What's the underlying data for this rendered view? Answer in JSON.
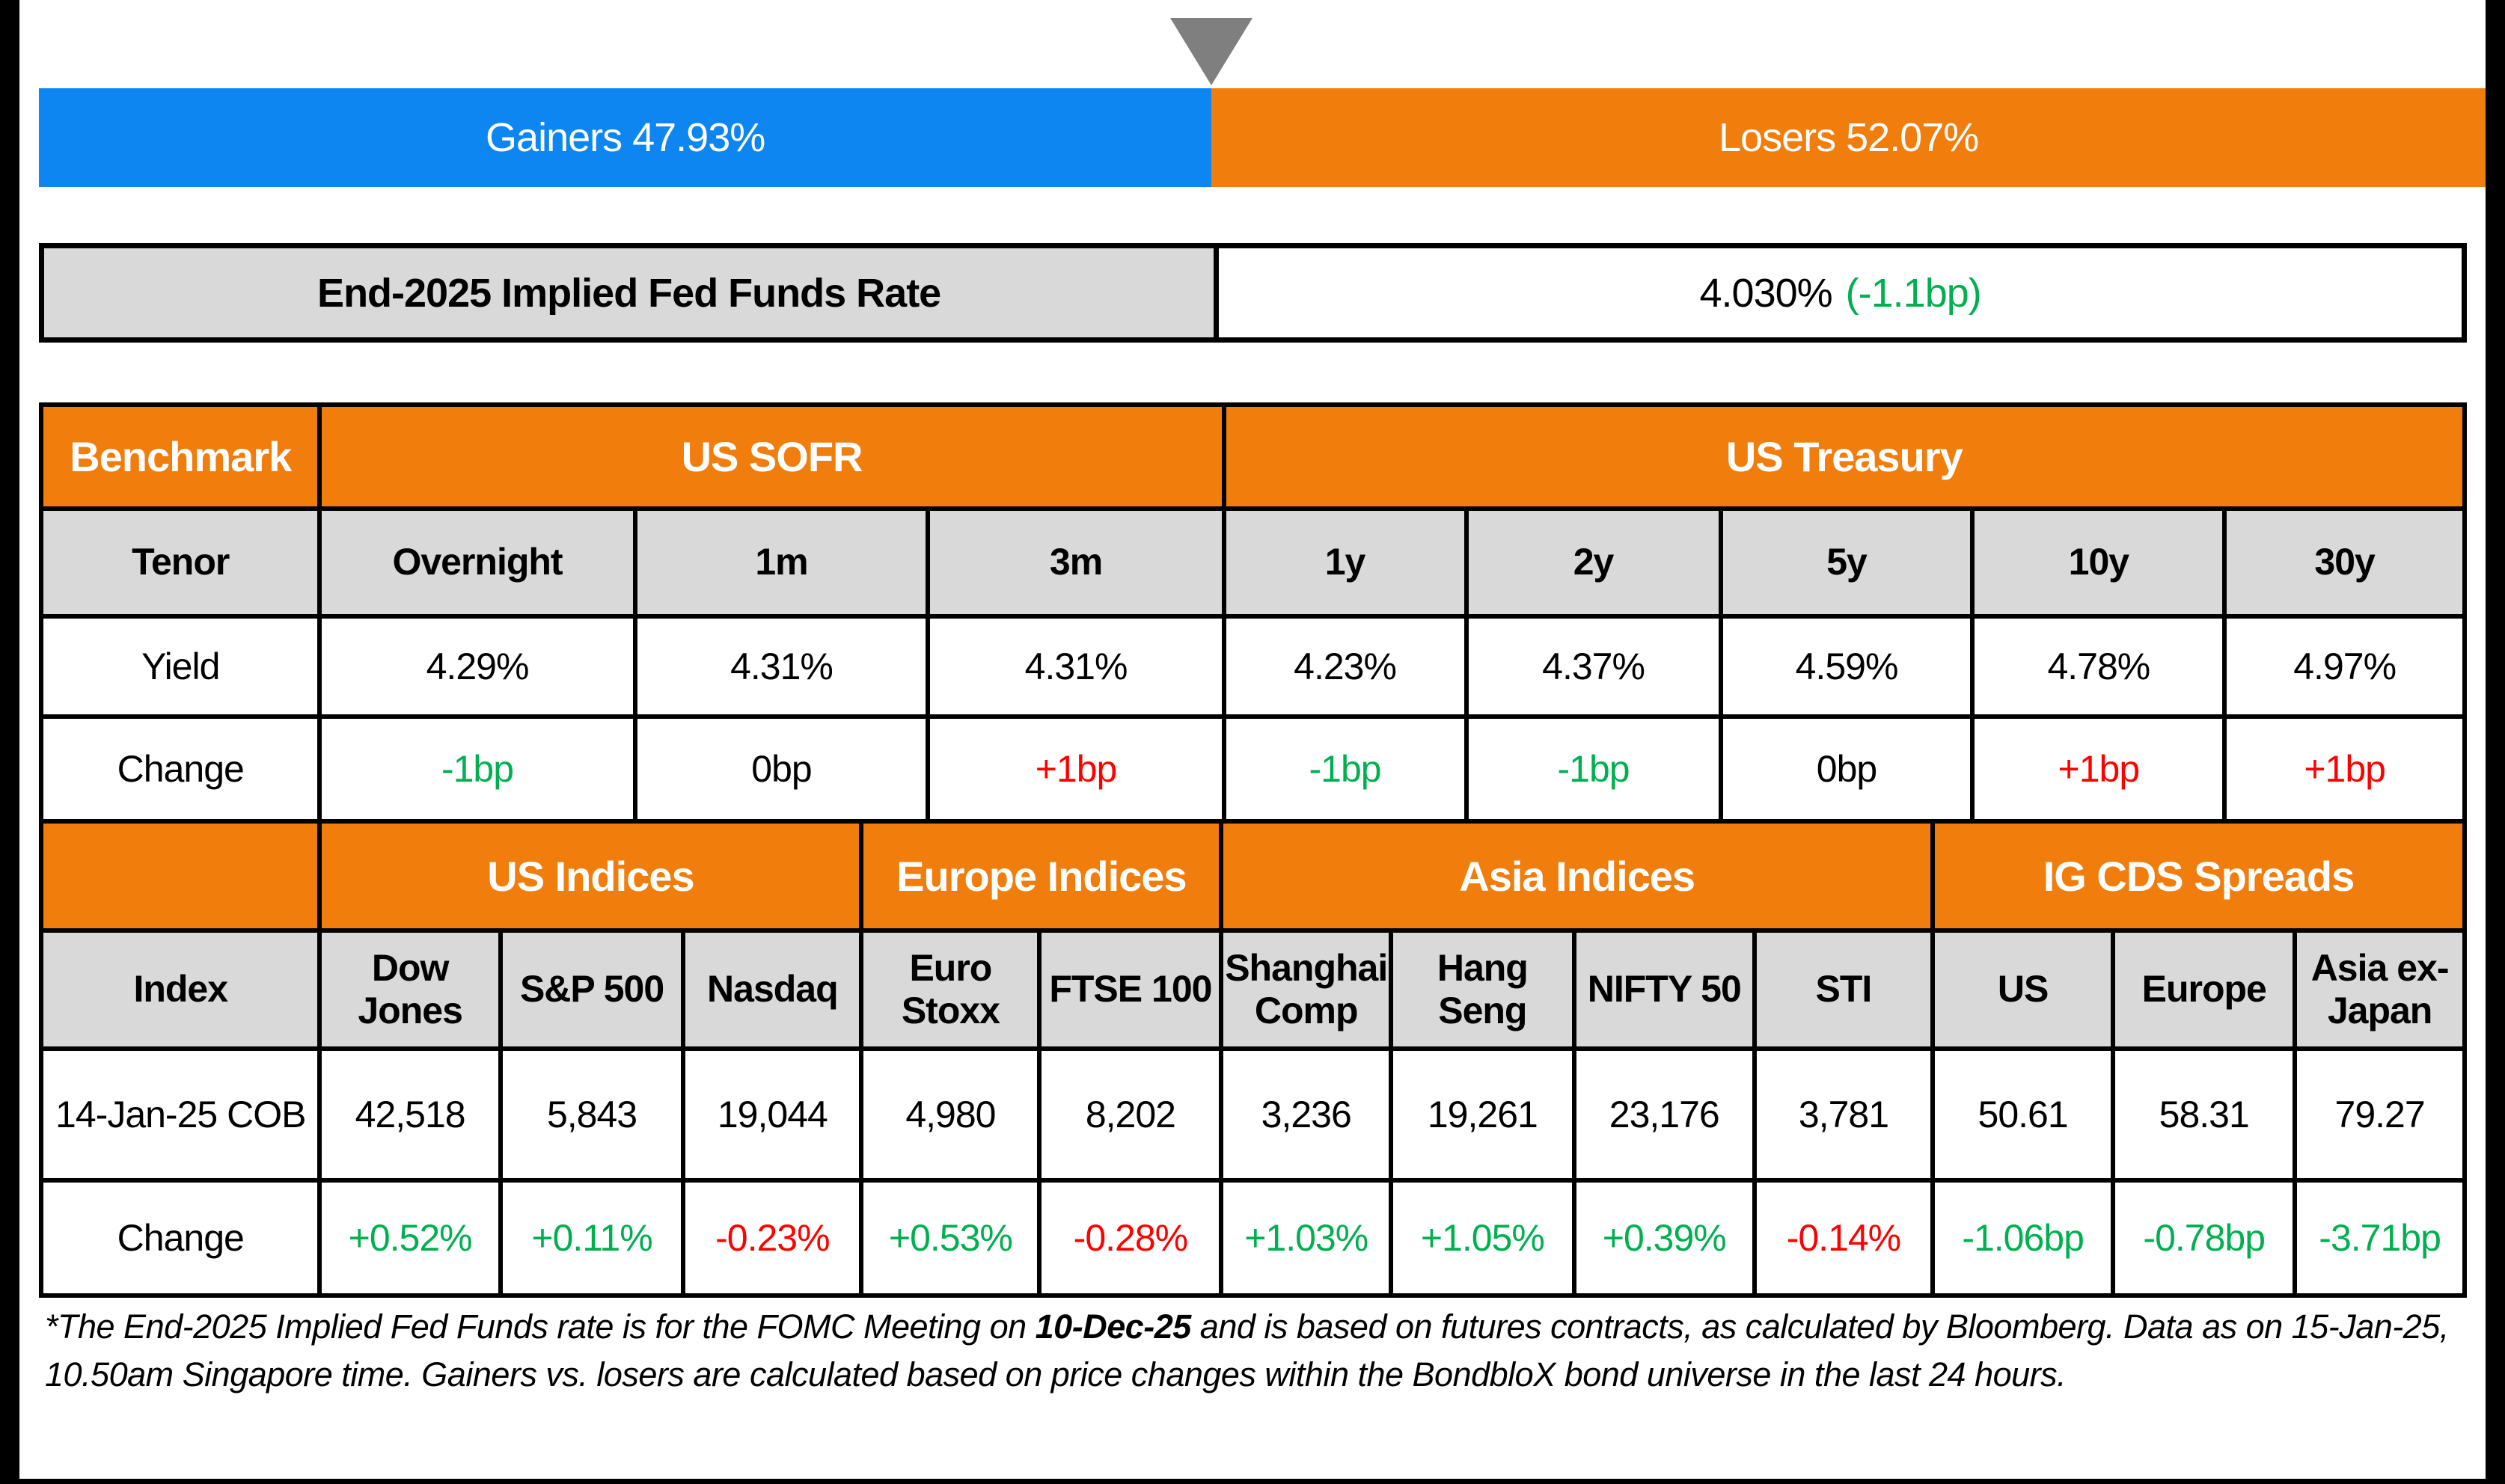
{
  "theme": {
    "orange": "#F07D0C",
    "blue": "#0E86F2",
    "gray_cell": "#D9D9D9",
    "pointer_gray": "#7F7F7F",
    "green": "#00B050",
    "red": "#FF0000",
    "black": "#000000"
  },
  "top_bar": {
    "gainers_label": "Gainers 47.93%",
    "losers_label": "Losers 52.07%",
    "gainers_pct": 47.93,
    "losers_pct": 52.07
  },
  "fed_funds": {
    "label": "End-2025 Implied Fed Funds Rate",
    "value": "4.030%",
    "change": "(-1.1bp)",
    "change_color": "#00B050"
  },
  "benchmark": {
    "corner_label": "Benchmark",
    "row_labels": {
      "tenor": "Tenor",
      "yield": "Yield",
      "change": "Change"
    },
    "groups": [
      {
        "label": "US SOFR",
        "span": 3
      },
      {
        "label": "US Treasury",
        "span": 5
      }
    ],
    "cols": [
      {
        "tenor": "Overnight",
        "yield": "4.29%",
        "change": "-1bp",
        "change_color": "#00B050"
      },
      {
        "tenor": "1m",
        "yield": "4.31%",
        "change": "0bp",
        "change_color": "#000000"
      },
      {
        "tenor": "3m",
        "yield": "4.31%",
        "change": "+1bp",
        "change_color": "#FF0000"
      },
      {
        "tenor": "1y",
        "yield": "4.23%",
        "change": "-1bp",
        "change_color": "#00B050"
      },
      {
        "tenor": "2y",
        "yield": "4.37%",
        "change": "-1bp",
        "change_color": "#00B050"
      },
      {
        "tenor": "5y",
        "yield": "4.59%",
        "change": "0bp",
        "change_color": "#000000"
      },
      {
        "tenor": "10y",
        "yield": "4.78%",
        "change": "+1bp",
        "change_color": "#FF0000"
      },
      {
        "tenor": "30y",
        "yield": "4.97%",
        "change": "+1bp",
        "change_color": "#FF0000"
      }
    ]
  },
  "indices": {
    "row_labels": {
      "index": "Index",
      "cob": "14-Jan-25 COB",
      "change": "Change"
    },
    "groups": [
      {
        "label": "US Indices",
        "span": 3
      },
      {
        "label": "Europe Indices",
        "span": 2
      },
      {
        "label": "Asia Indices",
        "span": 4
      },
      {
        "label": "IG CDS Spreads",
        "span": 3
      }
    ],
    "cols": [
      {
        "name": "Dow Jones",
        "value": "42,518",
        "change": "+0.52%",
        "change_color": "#00B050"
      },
      {
        "name": "S&P 500",
        "value": "5,843",
        "change": "+0.11%",
        "change_color": "#00B050"
      },
      {
        "name": "Nasdaq",
        "value": "19,044",
        "change": "-0.23%",
        "change_color": "#FF0000"
      },
      {
        "name": "Euro Stoxx",
        "value": "4,980",
        "change": "+0.53%",
        "change_color": "#00B050"
      },
      {
        "name": "FTSE 100",
        "value": "8,202",
        "change": "-0.28%",
        "change_color": "#FF0000"
      },
      {
        "name": "Shanghai Comp",
        "value": "3,236",
        "change": "+1.03%",
        "change_color": "#00B050"
      },
      {
        "name": "Hang Seng",
        "value": "19,261",
        "change": "+1.05%",
        "change_color": "#00B050"
      },
      {
        "name": "NIFTY 50",
        "value": "23,176",
        "change": "+0.39%",
        "change_color": "#00B050"
      },
      {
        "name": "STI",
        "value": "3,781",
        "change": "-0.14%",
        "change_color": "#FF0000"
      },
      {
        "name": "US",
        "value": "50.61",
        "change": "-1.06bp",
        "change_color": "#00B050"
      },
      {
        "name": "Europe",
        "value": "58.31",
        "change": "-0.78bp",
        "change_color": "#00B050"
      },
      {
        "name": "Asia ex-Japan",
        "value": "79.27",
        "change": "-3.71bp",
        "change_color": "#00B050"
      }
    ]
  },
  "footnote": {
    "part1": "*The End-2025 Implied Fed Funds rate is for the FOMC Meeting on ",
    "bold_date": "10-Dec-25",
    "part2": " and is based on futures contracts, as calculated by Bloomberg. Data as on 15-Jan-25, 10.50am Singapore time. Gainers vs. losers are calculated based on price changes within the BondbloX bond universe in the last 24 hours."
  },
  "chart_data": [
    {
      "type": "bar",
      "title": "Gainers vs Losers (BondbloX bond universe, last 24 hours)",
      "categories": [
        "Gainers",
        "Losers"
      ],
      "values": [
        47.93,
        52.07
      ],
      "unit": "%",
      "colors": [
        "#0E86F2",
        "#F07D0C"
      ],
      "layout": "horizontal-100%-stacked, gray triangle marker at split"
    },
    {
      "type": "table",
      "title": "Benchmark",
      "groups": [
        "US SOFR (Overnight, 1m, 3m)",
        "US Treasury (1y, 2y, 5y, 10y, 30y)"
      ],
      "columns": [
        "Overnight",
        "1m",
        "3m",
        "1y",
        "2y",
        "5y",
        "10y",
        "30y"
      ],
      "rows": [
        {
          "label": "Yield",
          "values": [
            "4.29%",
            "4.31%",
            "4.31%",
            "4.23%",
            "4.37%",
            "4.59%",
            "4.78%",
            "4.97%"
          ]
        },
        {
          "label": "Change",
          "values": [
            "-1bp",
            "0bp",
            "+1bp",
            "-1bp",
            "-1bp",
            "0bp",
            "+1bp",
            "+1bp"
          ]
        }
      ]
    },
    {
      "type": "table",
      "title": "Indices and IG CDS Spreads",
      "groups": [
        "US Indices (3)",
        "Europe Indices (2)",
        "Asia Indices (4)",
        "IG CDS Spreads (3)"
      ],
      "columns": [
        "Dow Jones",
        "S&P 500",
        "Nasdaq",
        "Euro Stoxx",
        "FTSE 100",
        "Shanghai Comp",
        "Hang Seng",
        "NIFTY 50",
        "STI",
        "US",
        "Europe",
        "Asia ex-Japan"
      ],
      "rows": [
        {
          "label": "14-Jan-25 COB",
          "values": [
            "42,518",
            "5,843",
            "19,044",
            "4,980",
            "8,202",
            "3,236",
            "19,261",
            "23,176",
            "3,781",
            "50.61",
            "58.31",
            "79.27"
          ]
        },
        {
          "label": "Change",
          "values": [
            "+0.52%",
            "+0.11%",
            "-0.23%",
            "+0.53%",
            "-0.28%",
            "+1.03%",
            "+1.05%",
            "+0.39%",
            "-0.14%",
            "-1.06bp",
            "-0.78bp",
            "-3.71bp"
          ]
        }
      ]
    }
  ]
}
